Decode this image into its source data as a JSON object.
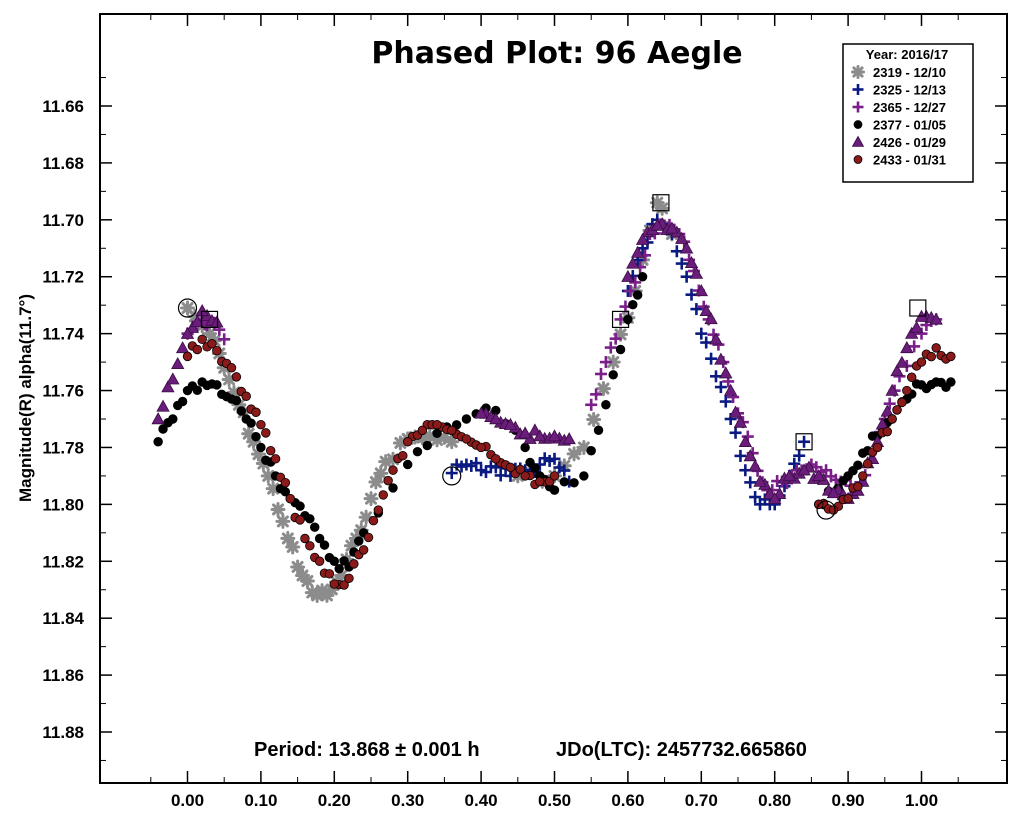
{
  "chart_data": {
    "type": "scatter",
    "title": "Phased Plot: 96 Aegle",
    "xlabel": "",
    "ylabel": "Magnitude(R) alpha(11.7°)",
    "xlim": [
      -0.12,
      1.12
    ],
    "ylim": [
      11.62,
      11.9
    ],
    "y_inverted": true,
    "grid": false,
    "x_ticks": [
      "0.00",
      "0.10",
      "0.20",
      "0.30",
      "0.40",
      "0.50",
      "0.60",
      "0.70",
      "0.80",
      "0.90",
      "1.00"
    ],
    "y_ticks": [
      "11.66",
      "11.68",
      "11.70",
      "11.72",
      "11.74",
      "11.76",
      "11.78",
      "11.80",
      "11.82",
      "11.84",
      "11.86",
      "11.88"
    ],
    "footer": {
      "period": "Period: 13.868 ± 0.001 h",
      "epoch": "JDo(LTC): 2457732.665860"
    },
    "legend": {
      "title": "Year: 2016/17",
      "position": "top-right"
    },
    "series": [
      {
        "name": "2319 - 12/10",
        "marker": "asterisk",
        "color": "#8c8c8c",
        "x": [
          0.0,
          0.03,
          0.05,
          0.07,
          0.09,
          0.11,
          0.13,
          0.15,
          0.17,
          0.19,
          0.21,
          0.23,
          0.25,
          0.27,
          0.3,
          0.33,
          0.36,
          0.45,
          0.5,
          0.54,
          0.58,
          0.61,
          0.64,
          0.66
        ],
        "y": [
          11.731,
          11.74,
          11.752,
          11.765,
          11.778,
          11.79,
          11.806,
          11.822,
          11.831,
          11.832,
          11.825,
          11.812,
          11.798,
          11.785,
          11.777,
          11.776,
          11.778,
          11.79,
          11.79,
          11.78,
          11.75,
          11.725,
          11.694,
          11.705
        ]
      },
      {
        "name": "2325 - 12/13",
        "marker": "plus",
        "color": "#0a1a80",
        "x": [
          0.36,
          0.38,
          0.4,
          0.42,
          0.44,
          0.46,
          0.48,
          0.5,
          0.52,
          0.6,
          0.62,
          0.64,
          0.66,
          0.68,
          0.7,
          0.72,
          0.74,
          0.76,
          0.78,
          0.8,
          0.82,
          0.84
        ],
        "y": [
          11.789,
          11.786,
          11.788,
          11.787,
          11.79,
          11.788,
          11.786,
          11.784,
          11.792,
          11.725,
          11.71,
          11.7,
          11.705,
          11.72,
          11.74,
          11.755,
          11.77,
          11.788,
          11.8,
          11.8,
          11.79,
          11.778
        ]
      },
      {
        "name": "2365 - 12/27",
        "marker": "plus",
        "color": "#7a1e8a",
        "x": [
          0.0,
          0.02,
          0.03,
          0.05,
          0.55,
          0.57,
          0.59,
          0.61,
          0.63,
          0.65,
          0.67,
          0.69,
          0.71,
          0.73,
          0.75,
          0.77,
          0.79,
          0.81,
          0.83,
          0.85,
          0.87,
          0.89,
          0.91,
          0.93,
          0.95,
          0.97,
          1.0,
          1.02
        ],
        "y": [
          11.74,
          11.735,
          11.736,
          11.742,
          11.765,
          11.75,
          11.735,
          11.722,
          11.705,
          11.702,
          11.705,
          11.718,
          11.735,
          11.75,
          11.768,
          11.782,
          11.795,
          11.792,
          11.788,
          11.786,
          11.788,
          11.792,
          11.796,
          11.785,
          11.77,
          11.755,
          11.74,
          11.735
        ]
      },
      {
        "name": "2377 - 01/05",
        "marker": "circle",
        "color": "#000000",
        "x": [
          -0.04,
          -0.02,
          0.0,
          0.02,
          0.04,
          0.06,
          0.08,
          0.1,
          0.12,
          0.14,
          0.16,
          0.18,
          0.2,
          0.22,
          0.24,
          0.3,
          0.34,
          0.38,
          0.42,
          0.46,
          0.48,
          0.5,
          0.54,
          0.57,
          0.6,
          0.62,
          0.86,
          0.88,
          0.9,
          0.92,
          0.94,
          0.96,
          0.98,
          1.0,
          1.02,
          1.04
        ],
        "y": [
          11.778,
          11.77,
          11.76,
          11.757,
          11.758,
          11.763,
          11.77,
          11.78,
          11.79,
          11.798,
          11.804,
          11.812,
          11.82,
          11.822,
          11.81,
          11.786,
          11.775,
          11.77,
          11.767,
          11.78,
          11.79,
          11.795,
          11.79,
          11.765,
          11.735,
          11.72,
          11.8,
          11.796,
          11.79,
          11.782,
          11.776,
          11.77,
          11.763,
          11.758,
          11.757,
          11.757
        ]
      },
      {
        "name": "2426 - 01/29",
        "marker": "triangle",
        "color": "#6a1d7a",
        "x": [
          -0.04,
          -0.02,
          0.0,
          0.02,
          0.04,
          0.4,
          0.42,
          0.44,
          0.46,
          0.48,
          0.5,
          0.52,
          0.6,
          0.62,
          0.64,
          0.66,
          0.68,
          0.7,
          0.72,
          0.74,
          0.76,
          0.78,
          0.8,
          0.82,
          0.84,
          0.86,
          0.88,
          0.9,
          0.92,
          0.94,
          0.96,
          0.98,
          1.0,
          1.02
        ],
        "y": [
          11.77,
          11.756,
          11.74,
          11.732,
          11.736,
          11.768,
          11.77,
          11.772,
          11.775,
          11.776,
          11.776,
          11.777,
          11.72,
          11.707,
          11.702,
          11.703,
          11.71,
          11.725,
          11.742,
          11.76,
          11.778,
          11.792,
          11.798,
          11.79,
          11.788,
          11.79,
          11.796,
          11.798,
          11.792,
          11.778,
          11.76,
          11.745,
          11.734,
          11.735
        ]
      },
      {
        "name": "2433 - 01/31",
        "marker": "circle",
        "color": "#8b1a1a",
        "x": [
          0.0,
          0.02,
          0.04,
          0.06,
          0.08,
          0.1,
          0.12,
          0.14,
          0.16,
          0.18,
          0.2,
          0.22,
          0.24,
          0.26,
          0.28,
          0.3,
          0.32,
          0.34,
          0.36,
          0.38,
          0.4,
          0.42,
          0.44,
          0.46,
          0.48,
          0.5,
          0.86,
          0.88,
          0.9,
          0.92,
          0.94,
          0.96,
          0.98,
          1.0,
          1.02,
          1.04
        ],
        "y": [
          11.748,
          11.742,
          11.746,
          11.752,
          11.762,
          11.772,
          11.784,
          11.798,
          11.812,
          11.82,
          11.828,
          11.826,
          11.816,
          11.802,
          11.788,
          11.778,
          11.774,
          11.772,
          11.774,
          11.777,
          11.78,
          11.784,
          11.787,
          11.79,
          11.792,
          11.79,
          11.8,
          11.802,
          11.798,
          11.79,
          11.78,
          11.77,
          11.76,
          11.75,
          11.745,
          11.748
        ]
      }
    ],
    "highlighted_points": [
      {
        "shape": "circle",
        "x": 0.0,
        "y": 11.731
      },
      {
        "shape": "square",
        "x": 0.03,
        "y": 11.735
      },
      {
        "shape": "circle",
        "x": 0.36,
        "y": 11.79
      },
      {
        "shape": "square",
        "x": 0.59,
        "y": 11.735
      },
      {
        "shape": "square",
        "x": 0.645,
        "y": 11.694
      },
      {
        "shape": "square",
        "x": 0.84,
        "y": 11.778
      },
      {
        "shape": "circle",
        "x": 0.87,
        "y": 11.802
      },
      {
        "shape": "square",
        "x": 0.995,
        "y": 11.731
      }
    ]
  }
}
